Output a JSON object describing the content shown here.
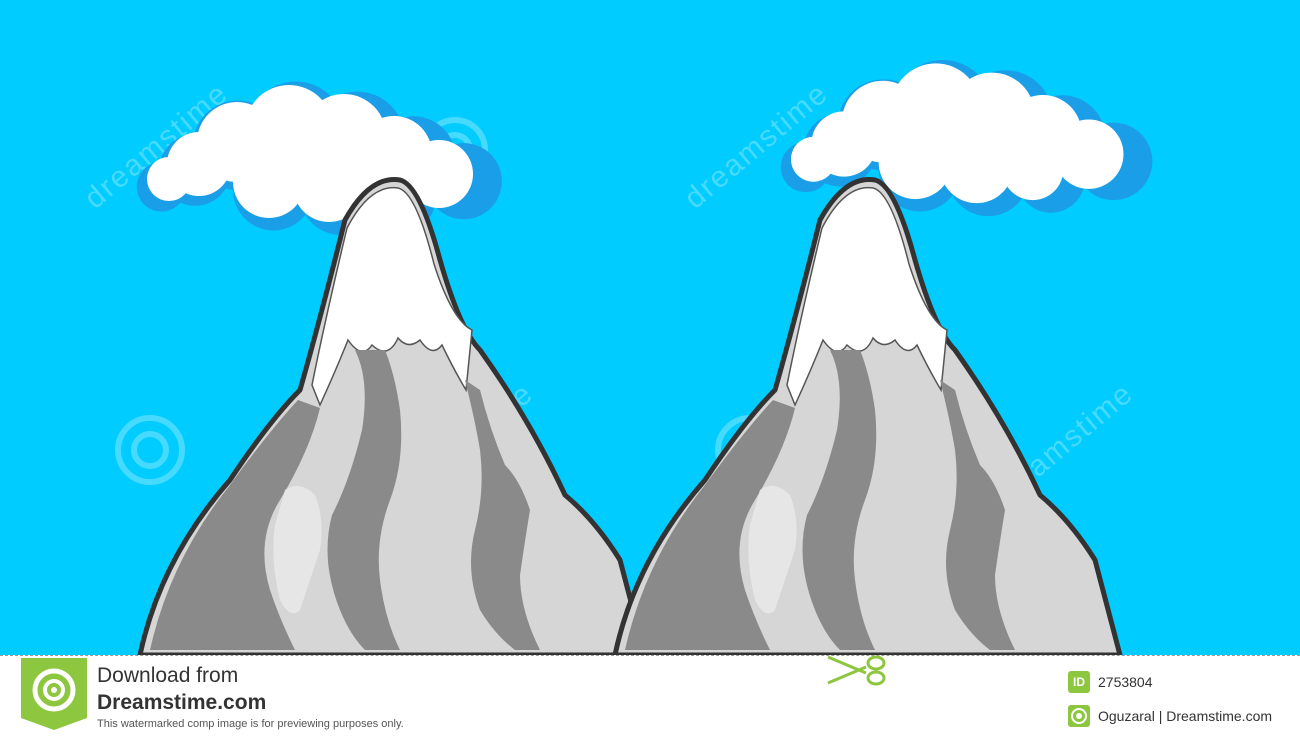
{
  "scene": {
    "sky_color": "#00ccff",
    "subjects": [
      "cloud",
      "mountain",
      "cloud",
      "mountain"
    ],
    "watermark_text": "dreamstime"
  },
  "colors": {
    "snow": "#ffffff",
    "rock_light": "#d6d6d6",
    "rock_dark": "#8a8a8a",
    "outline": "#333333",
    "cloud_edge": "#1a9ee8",
    "cloud_fill": "#ffffff",
    "footer_accent": "#8dc63f"
  },
  "footer": {
    "download_label": "Download from",
    "brand": "Dreamstime.com",
    "disclaimer": "This watermarked comp image is for previewing purposes only.",
    "id_badge": "ID",
    "image_id": "2753804",
    "credit": "Oguzaral | Dreamstime.com",
    "icons": [
      "dreamstime-logo-icon",
      "scissors-icon",
      "id-badge-icon",
      "copyright-icon"
    ]
  }
}
